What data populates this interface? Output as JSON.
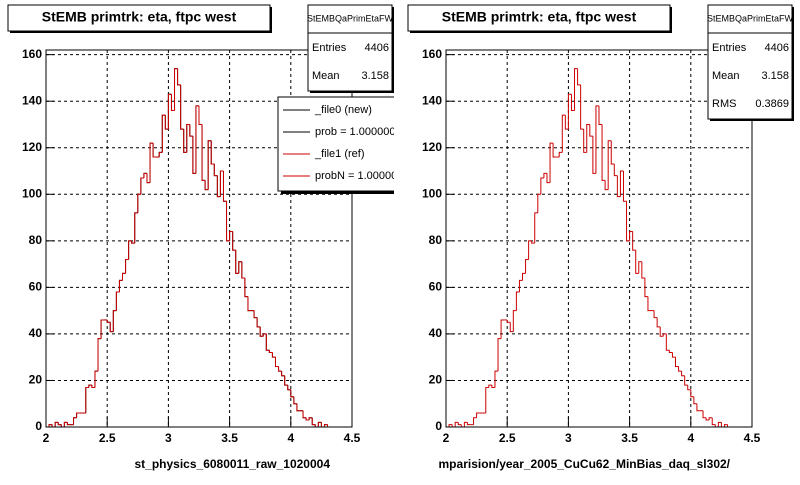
{
  "chart_data": [
    {
      "type": "histogram",
      "title": "StEMB primtrk: eta, ftpc west",
      "xlabel": "st_physics_6080011_raw_1020004",
      "bins": [
        2,
        2.025,
        2.05,
        2.075,
        2.1,
        2.125,
        2.15,
        2.175,
        2.2,
        2.225,
        2.25,
        2.275,
        2.3,
        2.325,
        2.35,
        2.375,
        2.4,
        2.425,
        2.45,
        2.475,
        2.5,
        2.525,
        2.55,
        2.575,
        2.6,
        2.625,
        2.65,
        2.675,
        2.7,
        2.725,
        2.75,
        2.775,
        2.8,
        2.825,
        2.85,
        2.875,
        2.9,
        2.925,
        2.95,
        2.975,
        3,
        3.025,
        3.05,
        3.075,
        3.1,
        3.125,
        3.15,
        3.175,
        3.2,
        3.225,
        3.25,
        3.275,
        3.3,
        3.325,
        3.35,
        3.375,
        3.4,
        3.425,
        3.45,
        3.475,
        3.5,
        3.525,
        3.55,
        3.575,
        3.6,
        3.625,
        3.65,
        3.675,
        3.7,
        3.725,
        3.75,
        3.775,
        3.8,
        3.825,
        3.85,
        3.875,
        3.9,
        3.925,
        3.95,
        3.975,
        4,
        4.025,
        4.05,
        4.075,
        4.1,
        4.125,
        4.15,
        4.175,
        4.2,
        4.225,
        4.25,
        4.275,
        4.3,
        4.325,
        4.35,
        4.375,
        4.4,
        4.425,
        4.45,
        4.475,
        4.5
      ],
      "series": [
        {
          "name": "_file0 (new)",
          "color": "#000000",
          "values": [
            0,
            1,
            0,
            2,
            1,
            0,
            2,
            1,
            1,
            4,
            6,
            6,
            6,
            17,
            18,
            17,
            24,
            38,
            46,
            46,
            45,
            41,
            50,
            58,
            63,
            66,
            72,
            80,
            79,
            92,
            100,
            107,
            109,
            105,
            122,
            116,
            116,
            118,
            134,
            128,
            143,
            136,
            154,
            147,
            128,
            118,
            130,
            125,
            109,
            138,
            130,
            106,
            102,
            123,
            113,
            108,
            99,
            110,
            97,
            80,
            84,
            76,
            66,
            71,
            64,
            56,
            50,
            50,
            47,
            43,
            39,
            40,
            33,
            32,
            30,
            26,
            24,
            22,
            18,
            16,
            13,
            10,
            7,
            7,
            4,
            3,
            4,
            1,
            0,
            2,
            0,
            1,
            0,
            0,
            0,
            0,
            0,
            0,
            0,
            0
          ]
        },
        {
          "name": "_file1 (ref)",
          "color": "#cc0000",
          "values": [
            0,
            1,
            0,
            2,
            1,
            0,
            2,
            1,
            1,
            4,
            6,
            6,
            6,
            17,
            18,
            17,
            24,
            38,
            46,
            46,
            45,
            41,
            50,
            58,
            63,
            66,
            72,
            80,
            79,
            92,
            100,
            107,
            109,
            105,
            122,
            116,
            116,
            118,
            134,
            128,
            143,
            136,
            154,
            147,
            128,
            118,
            130,
            125,
            109,
            138,
            130,
            106,
            102,
            123,
            113,
            108,
            99,
            110,
            97,
            80,
            84,
            76,
            66,
            71,
            64,
            56,
            50,
            50,
            47,
            43,
            39,
            40,
            33,
            32,
            30,
            26,
            24,
            22,
            18,
            16,
            13,
            10,
            7,
            7,
            4,
            3,
            4,
            1,
            0,
            2,
            0,
            1,
            0,
            0,
            0,
            0,
            0,
            0,
            0,
            0
          ]
        }
      ],
      "legend_notes": [
        {
          "text": "prob = 1.000000",
          "color": "#000000"
        },
        {
          "text": "probN = 1.00000",
          "color": "#cc0000"
        }
      ],
      "stats": {
        "title": "StEMBQaPrimEtaFW",
        "rows": [
          {
            "label": "Entries",
            "value": 4406
          },
          {
            "label": "Mean",
            "value": 3.158
          }
        ]
      },
      "xlim": [
        2,
        4.5
      ],
      "xticks": [
        2,
        2.5,
        3,
        3.5,
        4,
        4.5
      ],
      "ylim": [
        0,
        162
      ],
      "yticks": [
        0,
        20,
        40,
        60,
        80,
        100,
        120,
        140,
        160
      ],
      "grid": true
    },
    {
      "type": "histogram",
      "title": "StEMB primtrk: eta, ftpc west",
      "xlabel": "mparision/year_2005_CuCu62_MinBias_daq_sl302/",
      "bins": [
        2,
        2.025,
        2.05,
        2.075,
        2.1,
        2.125,
        2.15,
        2.175,
        2.2,
        2.225,
        2.25,
        2.275,
        2.3,
        2.325,
        2.35,
        2.375,
        2.4,
        2.425,
        2.45,
        2.475,
        2.5,
        2.525,
        2.55,
        2.575,
        2.6,
        2.625,
        2.65,
        2.675,
        2.7,
        2.725,
        2.75,
        2.775,
        2.8,
        2.825,
        2.85,
        2.875,
        2.9,
        2.925,
        2.95,
        2.975,
        3,
        3.025,
        3.05,
        3.075,
        3.1,
        3.125,
        3.15,
        3.175,
        3.2,
        3.225,
        3.25,
        3.275,
        3.3,
        3.325,
        3.35,
        3.375,
        3.4,
        3.425,
        3.45,
        3.475,
        3.5,
        3.525,
        3.55,
        3.575,
        3.6,
        3.625,
        3.65,
        3.675,
        3.7,
        3.725,
        3.75,
        3.775,
        3.8,
        3.825,
        3.85,
        3.875,
        3.9,
        3.925,
        3.95,
        3.975,
        4,
        4.025,
        4.05,
        4.075,
        4.1,
        4.125,
        4.15,
        4.175,
        4.2,
        4.225,
        4.25,
        4.275,
        4.3,
        4.325,
        4.35,
        4.375,
        4.4,
        4.425,
        4.45,
        4.475,
        4.5
      ],
      "series": [
        {
          "color": "#cc0000",
          "values": [
            0,
            1,
            0,
            2,
            1,
            0,
            2,
            1,
            1,
            4,
            6,
            6,
            6,
            17,
            18,
            17,
            24,
            38,
            46,
            46,
            45,
            41,
            50,
            58,
            63,
            66,
            72,
            80,
            79,
            92,
            100,
            107,
            109,
            105,
            122,
            116,
            116,
            118,
            134,
            128,
            143,
            136,
            154,
            147,
            128,
            118,
            130,
            125,
            109,
            138,
            130,
            106,
            102,
            123,
            113,
            108,
            99,
            110,
            97,
            80,
            84,
            76,
            66,
            71,
            64,
            56,
            50,
            50,
            47,
            43,
            39,
            40,
            33,
            32,
            30,
            26,
            24,
            22,
            18,
            16,
            13,
            10,
            7,
            7,
            4,
            3,
            4,
            1,
            0,
            2,
            0,
            1,
            0,
            0,
            0,
            0,
            0,
            0,
            0,
            0
          ]
        }
      ],
      "stats": {
        "title": "StEMBQaPrimEtaFW",
        "rows": [
          {
            "label": "Entries",
            "value": 4406
          },
          {
            "label": "Mean",
            "value": 3.158
          },
          {
            "label": "RMS",
            "value": 0.3869
          }
        ]
      },
      "xlim": [
        2,
        4.5
      ],
      "xticks": [
        2,
        2.5,
        3,
        3.5,
        4,
        4.5
      ],
      "ylim": [
        0,
        162
      ],
      "yticks": [
        0,
        20,
        40,
        60,
        80,
        100,
        120,
        140,
        160
      ],
      "grid": true
    }
  ]
}
